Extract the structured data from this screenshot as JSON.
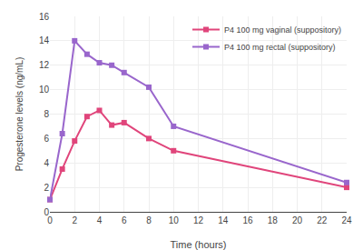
{
  "chart_data": {
    "type": "line",
    "x": [
      0,
      1,
      2,
      3,
      4,
      5,
      6,
      8,
      10,
      24
    ],
    "series": [
      {
        "name": "P4 100 mg vaginal (suppository)",
        "color": "#e0457b",
        "marker": "square",
        "values": [
          1.0,
          3.5,
          5.8,
          7.8,
          8.3,
          7.1,
          7.3,
          6.0,
          5.0,
          2.0
        ]
      },
      {
        "name": "P4 100 mg rectal (suppository)",
        "color": "#9966cc",
        "marker": "square",
        "values": [
          1.0,
          6.4,
          14.0,
          12.9,
          12.2,
          12.0,
          11.4,
          10.2,
          7.0,
          2.4
        ]
      }
    ],
    "xlabel": "Time (hours)",
    "ylabel": "Progesterone levels (ng/mL)",
    "xlim": [
      0,
      24
    ],
    "ylim": [
      0,
      16
    ],
    "xticks": [
      0,
      2,
      4,
      6,
      8,
      10,
      12,
      14,
      16,
      18,
      20,
      22,
      24
    ],
    "yticks": [
      0,
      2,
      4,
      6,
      8,
      10,
      12,
      14,
      16
    ],
    "grid": true,
    "legend": "upper right"
  }
}
